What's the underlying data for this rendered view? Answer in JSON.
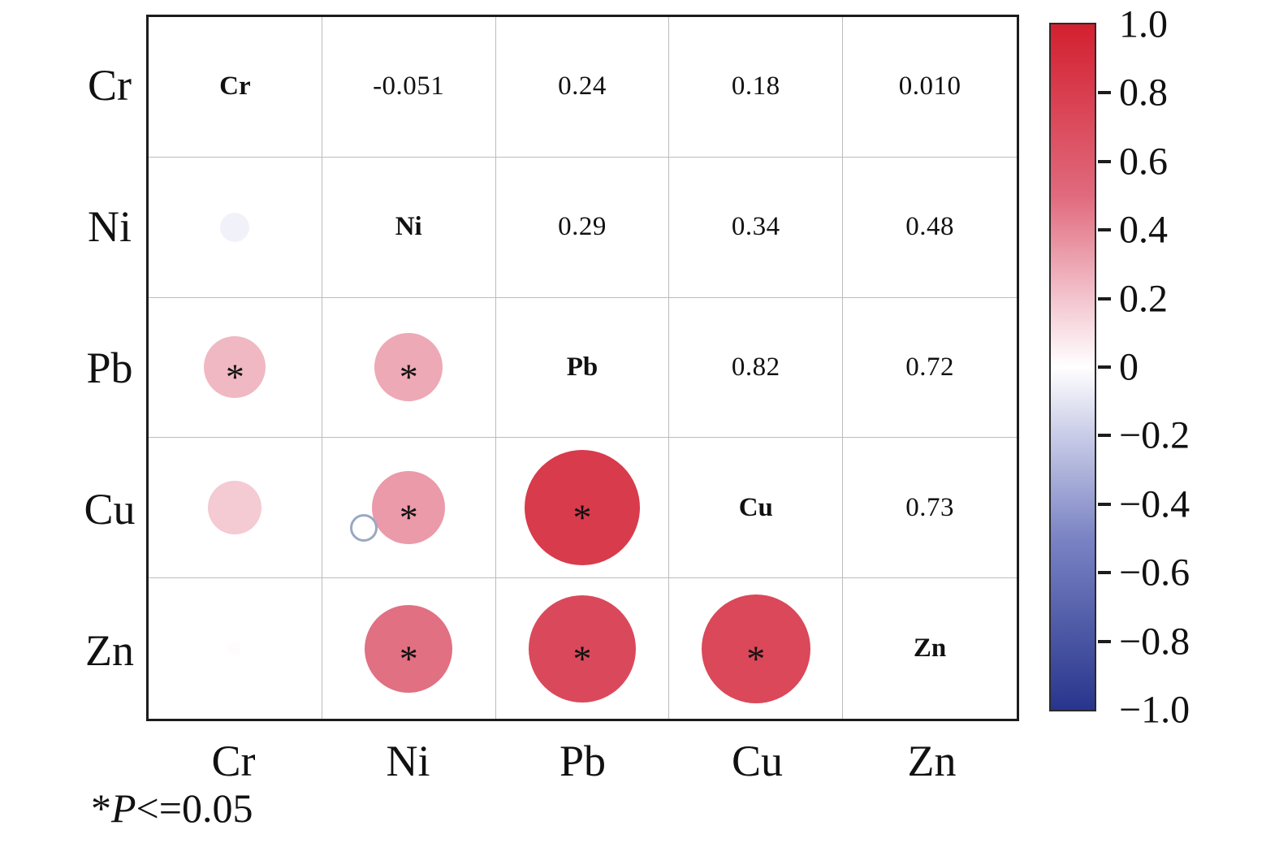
{
  "chart_data": {
    "type": "heatmap",
    "subtype": "correlation-matrix",
    "title": "",
    "variables": [
      "Cr",
      "Ni",
      "Pb",
      "Cu",
      "Zn"
    ],
    "layout_hints": {
      "upper_triangle": "correlation coefficient values as text",
      "diagonal": "bold variable names",
      "lower_triangle": "filled circles sized and colored by correlation",
      "legend_position": "right colorbar",
      "grid": "on"
    },
    "pairs": [
      {
        "a": "Cr",
        "b": "Ni",
        "value": -0.051,
        "label": "-0.051",
        "significant": false
      },
      {
        "a": "Cr",
        "b": "Pb",
        "value": 0.24,
        "label": "0.24",
        "significant": true
      },
      {
        "a": "Cr",
        "b": "Cu",
        "value": 0.18,
        "label": "0.18",
        "significant": false
      },
      {
        "a": "Cr",
        "b": "Zn",
        "value": 0.01,
        "label": "0.010",
        "significant": false
      },
      {
        "a": "Ni",
        "b": "Pb",
        "value": 0.29,
        "label": "0.29",
        "significant": true
      },
      {
        "a": "Ni",
        "b": "Cu",
        "value": 0.34,
        "label": "0.34",
        "significant": true
      },
      {
        "a": "Ni",
        "b": "Zn",
        "value": 0.48,
        "label": "0.48",
        "significant": true
      },
      {
        "a": "Pb",
        "b": "Cu",
        "value": 0.82,
        "label": "0.82",
        "significant": true
      },
      {
        "a": "Pb",
        "b": "Zn",
        "value": 0.72,
        "label": "0.72",
        "significant": true
      },
      {
        "a": "Cu",
        "b": "Zn",
        "value": 0.73,
        "label": "0.73",
        "significant": true
      }
    ],
    "significance_marker": "*",
    "colorbar": {
      "range": [
        1,
        -1
      ],
      "ticks": [
        "1.0",
        "0.8",
        "0.6",
        "0.4",
        "0.2",
        "0",
        "−0.2",
        "−0.4",
        "−0.6",
        "−0.8",
        "−1.0"
      ],
      "stops": [
        {
          "value": 1,
          "color": "#d3202f"
        },
        {
          "value": 0.5,
          "color": "#e06a7d"
        },
        {
          "value": 0.15,
          "color": "#f6d3db"
        },
        {
          "value": 0,
          "color": "#ffffff"
        },
        {
          "value": -0.15,
          "color": "#d6d8ed"
        },
        {
          "value": -0.5,
          "color": "#7a83c4"
        },
        {
          "value": -1,
          "color": "#28358c"
        }
      ]
    },
    "footnote": {
      "star": "*",
      "p": "P",
      "rest": "<=0.05"
    }
  }
}
